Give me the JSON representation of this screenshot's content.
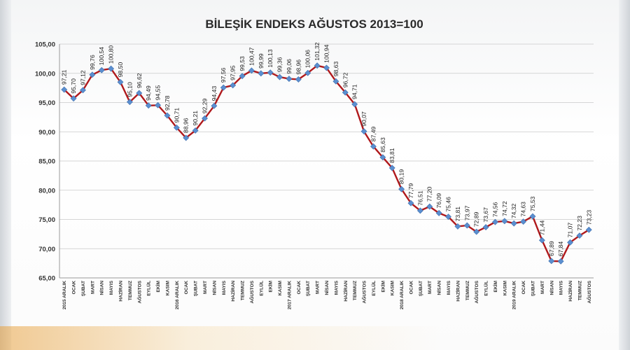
{
  "chart_data": {
    "type": "line",
    "title": "BİLEŞİK ENDEKS AĞUSTOS 2013=100",
    "xlabel": "",
    "ylabel": "",
    "ylim": [
      65,
      105
    ],
    "yticks": [
      "105,00",
      "100,00",
      "95,00",
      "90,00",
      "85,00",
      "80,00",
      "75,00",
      "70,00",
      "65,00"
    ],
    "grid": true,
    "legend": "none",
    "line_color": "#b0191c",
    "marker_color": "#5b8fd0",
    "categories": [
      "2015 ARALIK",
      "OCAK",
      "ŞUBAT",
      "MART",
      "NİSAN",
      "MAYIS",
      "HAZİRAN",
      "TEMMUZ",
      "AĞUSTOS",
      "EYLÜL",
      "EKİM",
      "KASIM",
      "2016 ARALIK",
      "OCAK",
      "ŞUBAT",
      "MART",
      "NİSAN",
      "MAYIS",
      "HAZİRAN",
      "TEMMUZ",
      "AĞUSTOS",
      "EYLÜL",
      "EKİM",
      "KASIM",
      "2017 ARALIK",
      "OCAK",
      "ŞUBAT",
      "MART",
      "NİSAN",
      "MAYIS",
      "HAZİRAN",
      "TEMMUZ",
      "AĞUSTOS",
      "EYLÜL",
      "EKİM",
      "KASIM",
      "2018 ARALIK",
      "OCAK",
      "ŞUBAT",
      "MART",
      "NİSAN",
      "MAYIS",
      "HAZİRAN",
      "TEMMUZ",
      "AĞUSTOS",
      "EYLÜL",
      "EKİM",
      "KASIM",
      "2019 ARALIK",
      "OCAK",
      "ŞUBAT",
      "MART",
      "NİSAN",
      "MAYIS",
      "HAZİRAN",
      "TEMMUZ",
      "AĞUSTOS"
    ],
    "values": [
      97.21,
      95.7,
      97.12,
      99.76,
      100.54,
      100.8,
      98.5,
      95.1,
      96.62,
      94.49,
      94.55,
      92.78,
      90.71,
      88.96,
      90.21,
      92.29,
      94.43,
      97.56,
      97.95,
      99.53,
      100.47,
      99.99,
      100.13,
      99.36,
      99.06,
      98.96,
      100.06,
      101.32,
      100.94,
      98.63,
      96.72,
      94.71,
      90.07,
      87.49,
      85.63,
      83.81,
      80.19,
      77.79,
      76.51,
      77.2,
      76.09,
      75.46,
      73.81,
      73.97,
      72.89,
      73.67,
      74.56,
      74.72,
      74.32,
      74.63,
      75.53,
      71.44,
      67.89,
      67.84,
      71.07,
      72.23,
      73.23
    ],
    "labels": [
      "97,21",
      "95,70",
      "97,12",
      "99,76",
      "100,54",
      "100,80",
      "98,50",
      "95,10",
      "96,62",
      "94,49",
      "94,55",
      "92,78",
      "90,71",
      "88,96",
      "90,21",
      "92,29",
      "94,43",
      "97,56",
      "97,95",
      "99,53",
      "100,47",
      "99,99",
      "100,13",
      "99,36",
      "99,06",
      "98,96",
      "100,06",
      "101,32",
      "100,94",
      "98,63",
      "96,72",
      "94,71",
      "90,07",
      "87,49",
      "85,63",
      "83,81",
      "80,19",
      "77,79",
      "76,51",
      "77,20",
      "76,09",
      "75,46",
      "73,81",
      "73,97",
      "72,89",
      "73,67",
      "74,56",
      "74,72",
      "74,32",
      "74,63",
      "75,53",
      "71,44",
      "67,89",
      "67,84",
      "71,07",
      "72,23",
      "73,23"
    ]
  }
}
